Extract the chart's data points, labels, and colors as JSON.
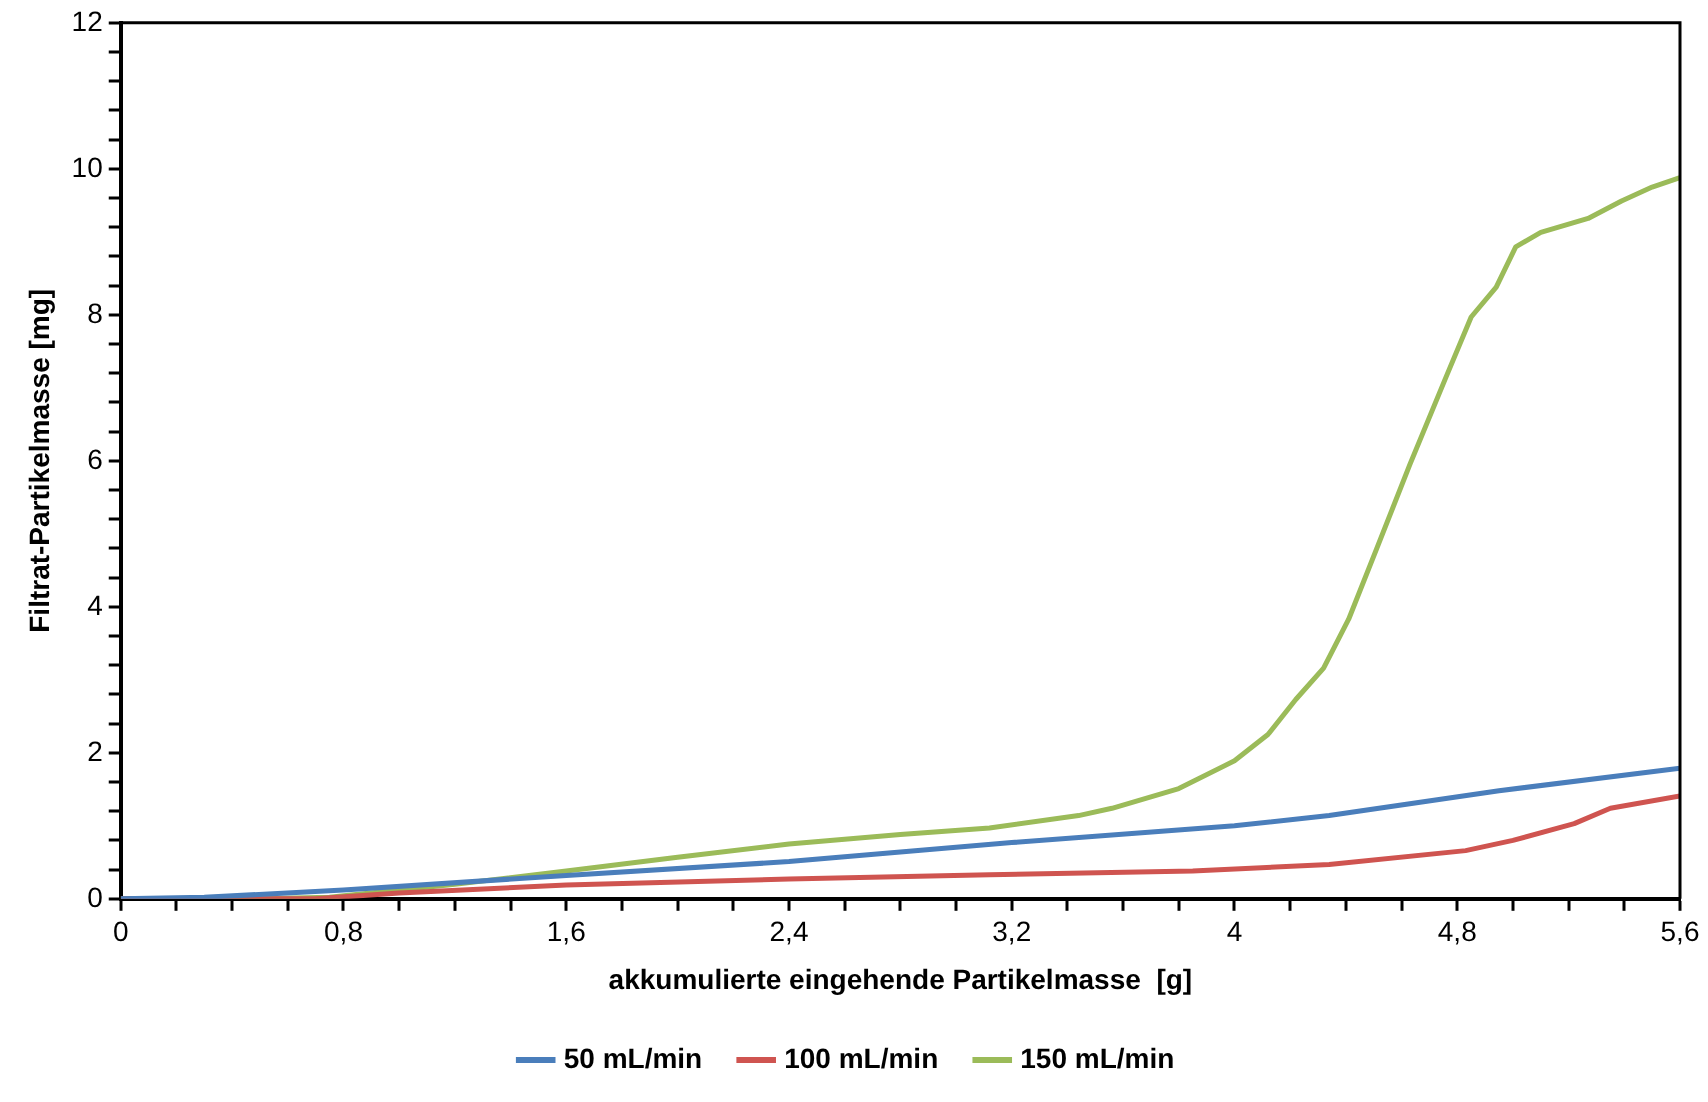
{
  "chart_data": {
    "type": "line",
    "xlabel": "akkumulierte eingehende Partikelmasse  [g]",
    "ylabel": "Filtrat-Partikelmasse [mg]",
    "xlim": [
      0,
      5.6
    ],
    "ylim": [
      0,
      12
    ],
    "xticks": [
      0,
      {
        "value": 0.2,
        "label": null
      },
      {
        "value": 0.4,
        "label": null
      },
      {
        "value": 0.6,
        "label": null
      },
      {
        "value": 0.8,
        "label": "0,8"
      },
      {
        "value": 1,
        "label": null
      },
      {
        "value": 1.2,
        "label": null
      },
      {
        "value": 1.4,
        "label": null
      },
      {
        "value": 1.6,
        "label": "1,6"
      },
      {
        "value": 1.8,
        "label": null
      },
      {
        "value": 2,
        "label": null
      },
      {
        "value": 2.2,
        "label": null
      },
      {
        "value": 2.4,
        "label": "2,4"
      },
      {
        "value": 2.6,
        "label": null
      },
      {
        "value": 2.8,
        "label": null
      },
      {
        "value": 3,
        "label": null
      },
      {
        "value": 3.2,
        "label": "3,2"
      },
      {
        "value": 3.4,
        "label": null
      },
      {
        "value": 3.6,
        "label": null
      },
      {
        "value": 3.8,
        "label": null
      },
      4,
      {
        "value": 4.2,
        "label": null
      },
      {
        "value": 4.4,
        "label": null
      },
      {
        "value": 4.6,
        "label": null
      },
      {
        "value": 4.8,
        "label": "4,8"
      },
      {
        "value": 5,
        "label": null
      },
      {
        "value": 5.2,
        "label": null
      },
      {
        "value": 5.4,
        "label": null
      },
      {
        "value": 5.6,
        "label": "5,6"
      }
    ],
    "yticks": [
      0,
      {
        "value": 0.4,
        "label": null
      },
      {
        "value": 0.8,
        "label": null
      },
      {
        "value": 1.2,
        "label": null
      },
      {
        "value": 1.6,
        "label": null
      },
      2,
      {
        "value": 2.4,
        "label": null
      },
      {
        "value": 2.8,
        "label": null
      },
      {
        "value": 3.2,
        "label": null
      },
      {
        "value": 3.6,
        "label": null
      },
      4,
      {
        "value": 4.4,
        "label": null
      },
      {
        "value": 4.8,
        "label": null
      },
      {
        "value": 5.2,
        "label": null
      },
      {
        "value": 5.6,
        "label": null
      },
      6,
      {
        "value": 6.4,
        "label": null
      },
      {
        "value": 6.8,
        "label": null
      },
      {
        "value": 7.2,
        "label": null
      },
      {
        "value": 7.6,
        "label": null
      },
      8,
      {
        "value": 8.4,
        "label": null
      },
      {
        "value": 8.8,
        "label": null
      },
      {
        "value": 9.2,
        "label": null
      },
      {
        "value": 9.6,
        "label": null
      },
      10,
      {
        "value": 10.4,
        "label": null
      },
      {
        "value": 10.8,
        "label": null
      },
      {
        "value": 11.2,
        "label": null
      },
      {
        "value": 11.6,
        "label": null
      },
      12
    ],
    "grid": false,
    "legend": "bottom",
    "marker": "none",
    "line_style": "solid",
    "series": [
      {
        "name": "50 mL/min",
        "color": "#4a7ebb",
        "x": [
          0,
          0.3,
          0.8,
          1.6,
          2.4,
          3.2,
          4.0,
          4.34,
          4.95,
          5.6
        ],
        "values": [
          0,
          0.02,
          0.12,
          0.32,
          0.51,
          0.77,
          1.0,
          1.14,
          1.48,
          1.79
        ]
      },
      {
        "name": "100 mL/min",
        "color": "#cf5450",
        "x": [
          0,
          0.7,
          1.0,
          1.6,
          2.4,
          3.12,
          3.85,
          4.34,
          4.83,
          5.0,
          5.22,
          5.35,
          5.6
        ],
        "values": [
          0,
          0,
          0.08,
          0.19,
          0.27,
          0.33,
          0.38,
          0.47,
          0.66,
          0.8,
          1.03,
          1.24,
          1.41
        ]
      },
      {
        "name": "150 mL/min",
        "color": "#9bbb59",
        "x": [
          0,
          0.5,
          0.75,
          1.2,
          1.6,
          2.0,
          2.4,
          2.8,
          3.12,
          3.44,
          3.56,
          3.8,
          4.0,
          4.12,
          4.22,
          4.32,
          4.41,
          4.51,
          4.63,
          4.76,
          4.85,
          4.94,
          5.01,
          5.1,
          5.27,
          5.39,
          5.5,
          5.6
        ],
        "values": [
          0,
          0,
          0.02,
          0.2,
          0.38,
          0.57,
          0.75,
          0.88,
          0.97,
          1.14,
          1.24,
          1.51,
          1.89,
          2.25,
          2.73,
          3.16,
          3.83,
          4.79,
          5.95,
          7.15,
          7.97,
          8.38,
          8.93,
          9.13,
          9.32,
          9.56,
          9.75,
          9.88
        ]
      }
    ]
  }
}
